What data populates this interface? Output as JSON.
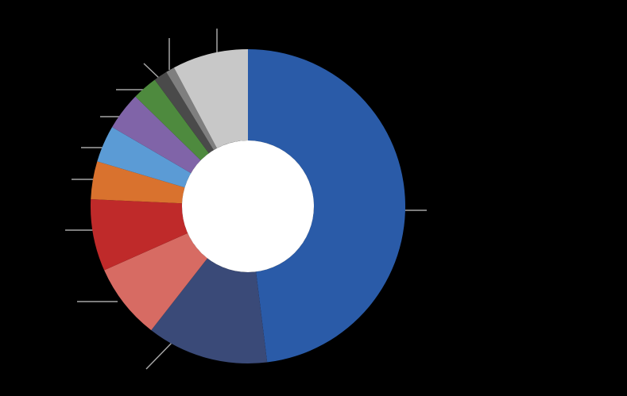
{
  "chart_data": {
    "type": "donut",
    "values": [
      48.1,
      12.5,
      7.8,
      7.4,
      3.9,
      3.8,
      3.9,
      2.6,
      1.4,
      0.9,
      7.8
    ],
    "colors": [
      "#2a5ba8",
      "#3a4a78",
      "#d76b63",
      "#bf2a2a",
      "#d9722e",
      "#5b9bd5",
      "#8064a8",
      "#4e8a3e",
      "#4a4a4a",
      "#7f7f7f",
      "#c8c8c8"
    ]
  }
}
